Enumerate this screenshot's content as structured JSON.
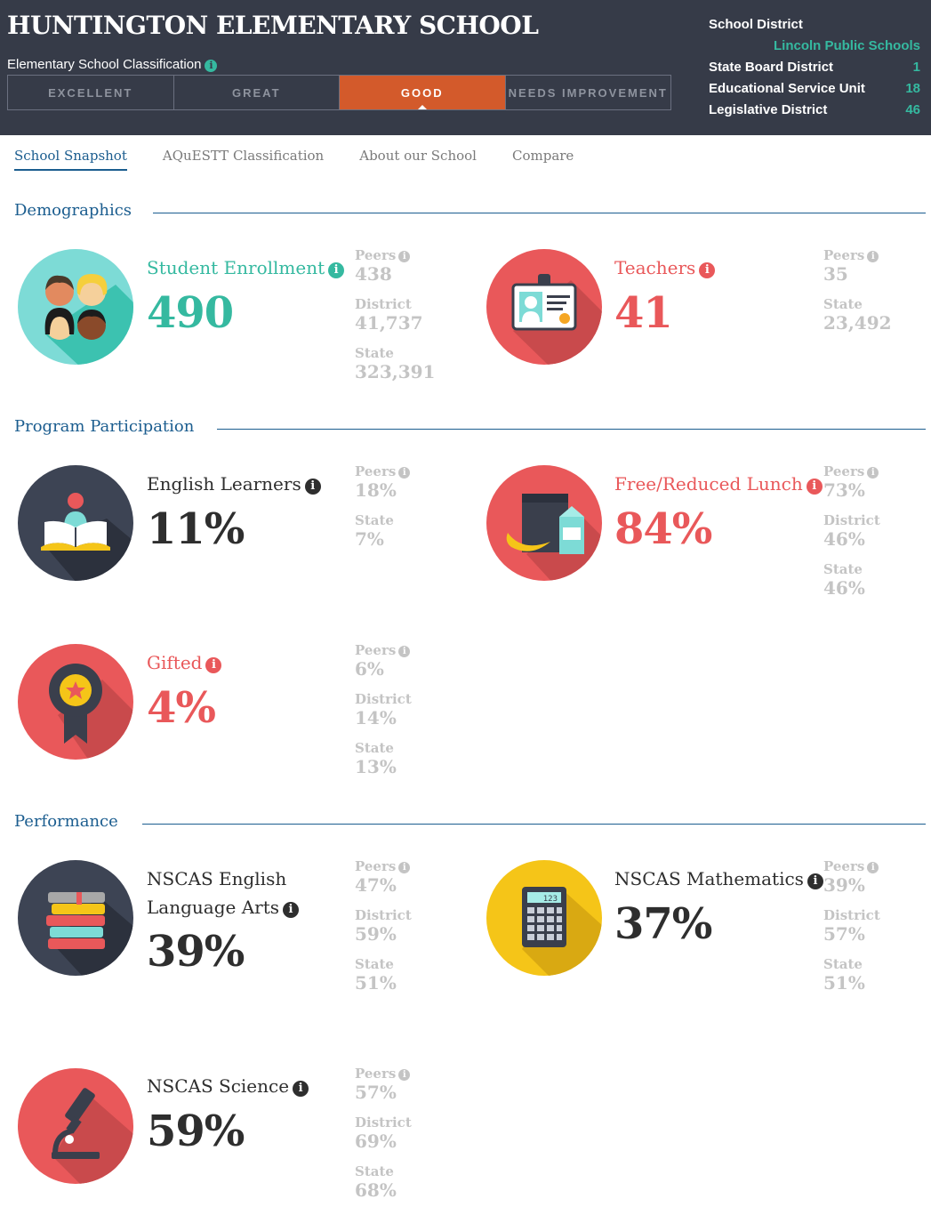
{
  "header": {
    "school_name": "HUNTINGTON ELEMENTARY SCHOOL",
    "classification_label": "Elementary School Classification",
    "classifications": [
      "EXCELLENT",
      "GREAT",
      "GOOD",
      "NEEDS IMPROVEMENT"
    ],
    "active_classification": "GOOD",
    "school_district_label": "School District",
    "school_district_value": "Lincoln Public Schools",
    "state_board_label": "State Board District",
    "state_board_value": "1",
    "esu_label": "Educational Service Unit",
    "esu_value": "18",
    "legislative_label": "Legislative District",
    "legislative_value": "46"
  },
  "tabs": [
    "School Snapshot",
    "AQuESTT Classification",
    "About our School",
    "Compare"
  ],
  "sections": {
    "demographics": "Demographics",
    "program": "Program Participation",
    "performance": "Performance"
  },
  "metrics": {
    "enrollment": {
      "label": "Student Enrollment",
      "value": "490",
      "peers_label": "Peers",
      "peers": "438",
      "district_label": "District",
      "district": "41,737",
      "state_label": "State",
      "state": "323,391"
    },
    "teachers": {
      "label": "Teachers",
      "value": "41",
      "peers_label": "Peers",
      "peers": "35",
      "state_label": "State",
      "state": "23,492"
    },
    "english_learners": {
      "label": "English Learners",
      "value": "11%",
      "peers_label": "Peers",
      "peers": "18%",
      "state_label": "State",
      "state": "7%"
    },
    "lunch": {
      "label": "Free/Reduced Lunch",
      "value": "84%",
      "peers_label": "Peers",
      "peers": "73%",
      "district_label": "District",
      "district": "46%",
      "state_label": "State",
      "state": "46%"
    },
    "gifted": {
      "label": "Gifted",
      "value": "4%",
      "peers_label": "Peers",
      "peers": "6%",
      "district_label": "District",
      "district": "14%",
      "state_label": "State",
      "state": "13%"
    },
    "ela": {
      "label_line1": "NSCAS English",
      "label_line2": "Language Arts",
      "value": "39%",
      "peers_label": "Peers",
      "peers": "47%",
      "district_label": "District",
      "district": "59%",
      "state_label": "State",
      "state": "51%"
    },
    "math": {
      "label": "NSCAS Mathematics",
      "value": "37%",
      "peers_label": "Peers",
      "peers": "39%",
      "district_label": "District",
      "district": "57%",
      "state_label": "State",
      "state": "51%"
    },
    "science": {
      "label": "NSCAS Science",
      "value": "59%",
      "peers_label": "Peers",
      "peers": "57%",
      "district_label": "District",
      "district": "69%",
      "state_label": "State",
      "state": "68%"
    }
  },
  "calculator_display": "123",
  "info_glyph": "i",
  "colors": {
    "header_bg": "#363b48",
    "teal": "#35b9a0",
    "red": "#e9585a",
    "orange": "#d35a2b",
    "blue": "#1b5d8f",
    "yellow": "#f5c518",
    "gray": "#c4c4c4"
  }
}
